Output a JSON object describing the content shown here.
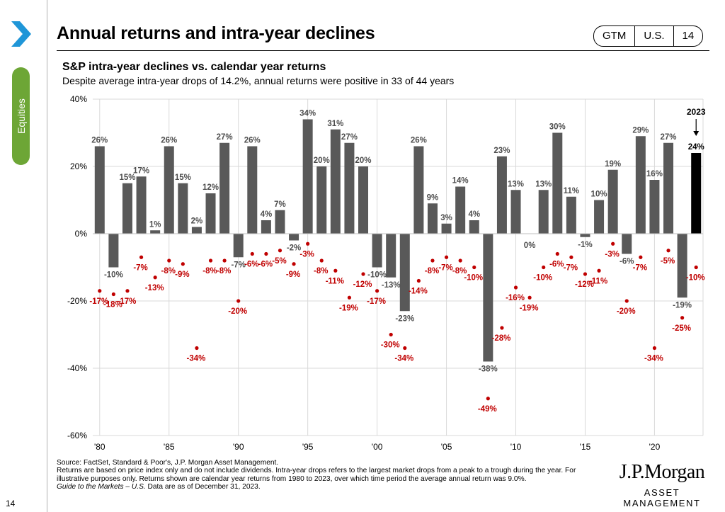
{
  "sidebar": {
    "section_label": "Equities",
    "page_number": "14"
  },
  "header": {
    "title": "Annual returns and intra-year declines",
    "badge": [
      "GTM",
      "U.S.",
      "14"
    ]
  },
  "chart_data": {
    "type": "bar",
    "title": "S&P intra-year declines vs. calendar year returns",
    "subtitle": "Despite average intra-year drops of 14.2%, annual returns were positive in 33 of 44 years",
    "years": [
      1980,
      1981,
      1982,
      1983,
      1984,
      1985,
      1986,
      1987,
      1988,
      1989,
      1990,
      1991,
      1992,
      1993,
      1994,
      1995,
      1996,
      1997,
      1998,
      1999,
      2000,
      2001,
      2002,
      2003,
      2004,
      2005,
      2006,
      2007,
      2008,
      2009,
      2010,
      2011,
      2012,
      2013,
      2014,
      2015,
      2016,
      2017,
      2018,
      2019,
      2020,
      2021,
      2022,
      2023
    ],
    "x_tick_labels": [
      "'80",
      "'85",
      "'90",
      "'95",
      "'00",
      "'05",
      "'10",
      "'15",
      "'20"
    ],
    "x_tick_years": [
      1980,
      1985,
      1990,
      1995,
      2000,
      2005,
      2010,
      2015,
      2020
    ],
    "series": [
      {
        "name": "Calendar year return",
        "values": [
          26,
          -10,
          15,
          17,
          1,
          26,
          15,
          2,
          12,
          27,
          -7,
          26,
          4,
          7,
          -2,
          34,
          20,
          31,
          27,
          20,
          -10,
          -13,
          -23,
          26,
          9,
          3,
          14,
          4,
          -38,
          23,
          13,
          0,
          13,
          30,
          11,
          -1,
          10,
          19,
          -6,
          29,
          16,
          27,
          -19,
          24
        ]
      },
      {
        "name": "Intra-year decline",
        "values": [
          -17,
          -18,
          -17,
          -7,
          -13,
          -8,
          -9,
          -34,
          -8,
          -8,
          -20,
          -6,
          -6,
          -5,
          -9,
          -3,
          -8,
          -11,
          -19,
          -12,
          -17,
          -30,
          -34,
          -14,
          -8,
          -7,
          -8,
          -10,
          -49,
          -28,
          -16,
          -19,
          -10,
          -6,
          -7,
          -12,
          -11,
          -3,
          -20,
          -7,
          -34,
          -5,
          -25,
          -10
        ]
      }
    ],
    "return_labels": [
      "26%",
      "-10%",
      "15%",
      "17%",
      "1%",
      "26%",
      "15%",
      "2%",
      "12%",
      "27%",
      "-7%",
      "26%",
      "4%",
      "7%",
      "-2%",
      "34%",
      "20%",
      "31%",
      "27%",
      "20%",
      "-10%",
      "-13%",
      "-23%",
      "26%",
      "9%",
      "3%",
      "14%",
      "4%",
      "-38%",
      "23%",
      "13%",
      "0%",
      "13%",
      "30%",
      "11%",
      "-1%",
      "10%",
      "19%",
      "-6%",
      "29%",
      "16%",
      "27%",
      "-19%",
      "24%"
    ],
    "decline_labels": [
      "-17%",
      "-18%",
      "-17%",
      "-7%",
      "-13%",
      "-8%",
      "-9%",
      "-34%",
      "-8%",
      "-8%",
      "-20%",
      "-6%",
      "-6%",
      "-5%",
      "-9%",
      "-3%",
      "-8%",
      "-11%",
      "-19%",
      "-12%",
      "-17%",
      "-30%",
      "-34%",
      "-14%",
      "-8%",
      "-7%",
      "-8%",
      "-10%",
      "-49%",
      "-28%",
      "-16%",
      "-19%",
      "-10%",
      "-6%",
      "-7%",
      "-12%",
      "-11%",
      "-3%",
      "-20%",
      "-7%",
      "-34%",
      "-5%",
      "-25%",
      "-10%"
    ],
    "y_ticks": [
      40,
      20,
      0,
      -20,
      -40,
      -60
    ],
    "y_tick_labels": [
      "40%",
      "20%",
      "0%",
      "-20%",
      "-40%",
      "-60%"
    ],
    "ylim": [
      -60,
      40
    ],
    "grid": true,
    "highlight_annotation": "2023",
    "colors": {
      "bar": "#595959",
      "bar_highlight": "#000000",
      "decline_dot": "#c00000",
      "decline_label": "#c00000",
      "return_label": "#4d4d4d",
      "grid": "#d9d9d9"
    }
  },
  "footer": {
    "lines": [
      "Source: FactSet, Standard & Poor's, J.P. Morgan Asset Management.",
      "Returns are based on price index only and do not include dividends. Intra-year drops refers to the largest market drops from a peak to a trough during the year. For illustrative purposes only. Returns shown are calendar year returns from 1980 to 2023, over which time period the average annual return was 9.0%."
    ],
    "guide_title": "Guide to the Markets – U.S.",
    "guide_suffix": " Data are as of December 31, 2023."
  },
  "logo": {
    "line1": "J.P.Morgan",
    "line2": "ASSET MANAGEMENT"
  }
}
